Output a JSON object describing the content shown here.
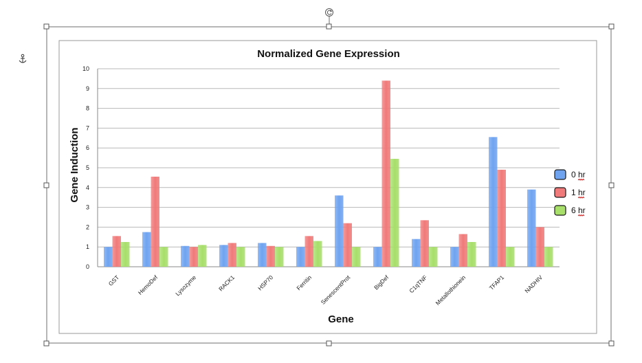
{
  "chart_data": {
    "type": "bar",
    "title": "Normalized Gene Expression",
    "xlabel": "Gene",
    "ylabel": "Gene Induction",
    "ylim": [
      0,
      10
    ],
    "yticks": [
      0,
      1,
      2,
      3,
      4,
      5,
      6,
      7,
      8,
      9,
      10
    ],
    "grid": true,
    "legend_position": "right",
    "categories": [
      "GST",
      "HemoDef",
      "Lysozyme",
      "RACK1",
      "HSP70",
      "Ferritin",
      "SenescentProt",
      "BigDef",
      "C1qTNF",
      "Metallothionein",
      "TFAP1",
      "NADHIV"
    ],
    "series": [
      {
        "name": "0 hr",
        "color": "#6fa3f0",
        "values": [
          1.0,
          1.75,
          1.05,
          1.1,
          1.2,
          1.0,
          3.6,
          1.0,
          1.4,
          1.0,
          6.55,
          3.9
        ]
      },
      {
        "name": "1 hr",
        "color": "#f07a7a",
        "values": [
          1.55,
          4.55,
          1.0,
          1.2,
          1.05,
          1.55,
          2.2,
          9.4,
          2.35,
          1.65,
          4.9,
          2.0
        ]
      },
      {
        "name": "6 hr",
        "color": "#a7df6a",
        "values": [
          1.25,
          1.0,
          1.1,
          1.0,
          1.0,
          1.3,
          1.0,
          5.45,
          1.0,
          1.25,
          1.0,
          1.0
        ]
      }
    ]
  }
}
